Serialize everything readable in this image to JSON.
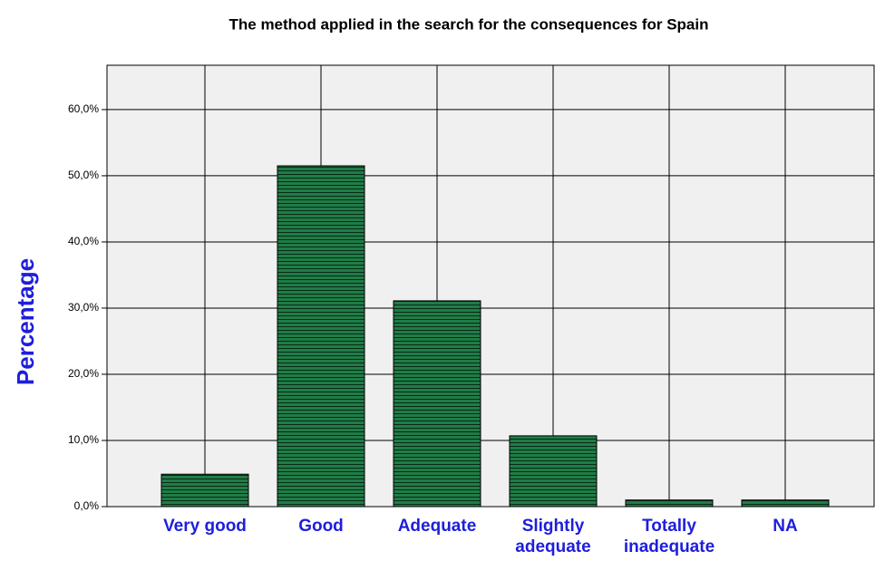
{
  "chart_data": {
    "type": "bar",
    "title": "The method applied in the search for the consequences for Spain",
    "y_label": "Percentage",
    "categories": [
      "Very good",
      "Good",
      "Adequate",
      "Slightly adequate",
      "Totally inadequate",
      "NA"
    ],
    "values": [
      4.9,
      51.5,
      31.1,
      10.7,
      1.0,
      1.0
    ],
    "color": "#1f7d47",
    "ylim": [
      0,
      66.7
    ],
    "yticks": [
      {
        "value": 0,
        "label": "0,0%"
      },
      {
        "value": 10,
        "label": "10,0%"
      },
      {
        "value": 20,
        "label": "20,0%"
      },
      {
        "value": 30,
        "label": "30,0%"
      },
      {
        "value": 40,
        "label": "40,0%"
      },
      {
        "value": 50,
        "label": "50,0%"
      },
      {
        "value": 60,
        "label": "60,0%"
      }
    ],
    "grid": true
  }
}
